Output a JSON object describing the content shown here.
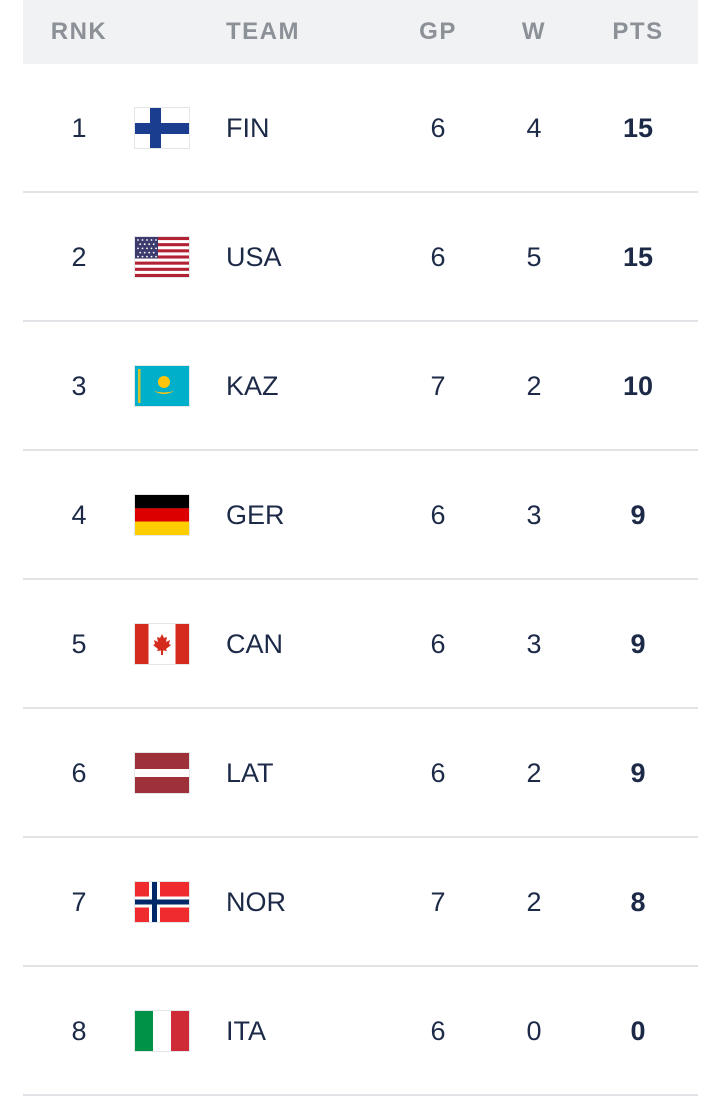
{
  "header": {
    "rank": "RNK",
    "team": "TEAM",
    "gp": "GP",
    "w": "W",
    "pts": "PTS"
  },
  "colors": {
    "text": "#1c2a48",
    "header_text": "#8c9097",
    "header_bg": "#f1f2f4",
    "divider": "#e1e3e6"
  },
  "rows": [
    {
      "rank": "1",
      "team": "FIN",
      "flag": "finland-flag-icon",
      "gp": "6",
      "w": "4",
      "pts": "15"
    },
    {
      "rank": "2",
      "team": "USA",
      "flag": "usa-flag-icon",
      "gp": "6",
      "w": "5",
      "pts": "15"
    },
    {
      "rank": "3",
      "team": "KAZ",
      "flag": "kazakhstan-flag-icon",
      "gp": "7",
      "w": "2",
      "pts": "10"
    },
    {
      "rank": "4",
      "team": "GER",
      "flag": "germany-flag-icon",
      "gp": "6",
      "w": "3",
      "pts": "9"
    },
    {
      "rank": "5",
      "team": "CAN",
      "flag": "canada-flag-icon",
      "gp": "6",
      "w": "3",
      "pts": "9"
    },
    {
      "rank": "6",
      "team": "LAT",
      "flag": "latvia-flag-icon",
      "gp": "6",
      "w": "2",
      "pts": "9"
    },
    {
      "rank": "7",
      "team": "NOR",
      "flag": "norway-flag-icon",
      "gp": "7",
      "w": "2",
      "pts": "8"
    },
    {
      "rank": "8",
      "team": "ITA",
      "flag": "italy-flag-icon",
      "gp": "6",
      "w": "0",
      "pts": "0"
    }
  ]
}
